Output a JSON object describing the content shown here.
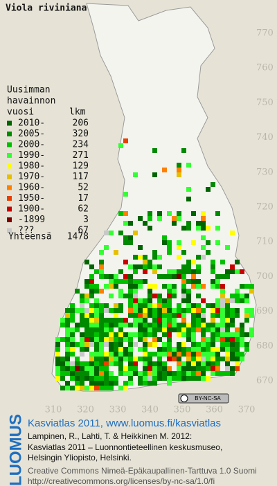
{
  "title": "Viola riviniana",
  "legend": {
    "heading": [
      "Uusimman",
      "havainnon",
      "vuosi"
    ],
    "count_heading": "lkm",
    "items": [
      {
        "label": "2010-",
        "count": 206,
        "color": "#006400"
      },
      {
        "label": "2005-",
        "count": 320,
        "color": "#008a00"
      },
      {
        "label": "2000-",
        "count": 234,
        "color": "#00c000"
      },
      {
        "label": "1990-",
        "count": 271,
        "color": "#33ff33"
      },
      {
        "label": "1980-",
        "count": 129,
        "color": "#ffff00"
      },
      {
        "label": "1970-",
        "count": 117,
        "color": "#e6c000"
      },
      {
        "label": "1960-",
        "count": 52,
        "color": "#ff7f00"
      },
      {
        "label": "1950-",
        "count": 17,
        "color": "#e84000"
      },
      {
        "label": "1900-",
        "count": 62,
        "color": "#c80000"
      },
      {
        "label": "-1899",
        "count": 3,
        "color": "#7a0000"
      },
      {
        "label": "???",
        "count": 67,
        "color": "#c8c8c8"
      }
    ],
    "total_label": "Yhteensä",
    "total": 1478
  },
  "grid": {
    "x_labels": [
      "310",
      "320",
      "330",
      "340",
      "350",
      "360",
      "370"
    ],
    "y_labels": [
      "770",
      "760",
      "750",
      "740",
      "730",
      "720",
      "710",
      "700",
      "690",
      "680",
      "670"
    ]
  },
  "badge": "BY-NC-SA",
  "footer": {
    "brand": "LUOMUS",
    "headline": "Kasviatlas 2011, www.luomus.fi/kasviatlas",
    "citation": [
      "Lampinen, R., Lahti, T. & Heikkinen M. 2012:",
      "Kasviatlas 2011 – Luonnontieteellinen keskusmuseo,",
      "Helsingin Yliopisto, Helsinki."
    ],
    "license": [
      "Creative Commons Nimeä-Epäkaupallinen-Tarttuva 1.0 Suomi",
      "http://creativecommons.org/licenses/by-nc-sa/1.0/fi"
    ]
  }
}
